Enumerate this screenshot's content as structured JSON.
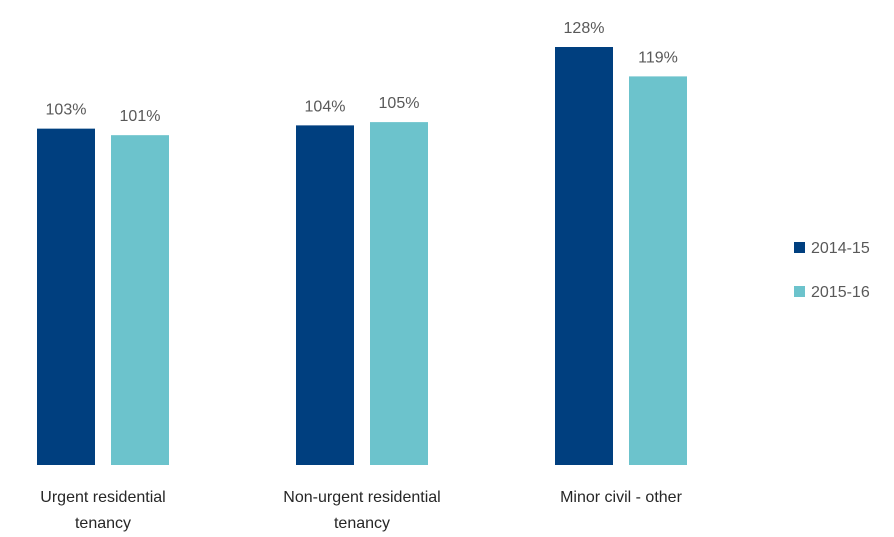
{
  "chart_data": {
    "type": "bar",
    "categories": [
      [
        "Urgent residential",
        "tenancy"
      ],
      [
        "Non-urgent residential",
        "tenancy"
      ],
      [
        "Minor civil - other"
      ]
    ],
    "series": [
      {
        "name": "2014-15",
        "color": "#003f7f",
        "values": [
          103,
          104,
          128
        ]
      },
      {
        "name": "2015-16",
        "color": "#6cc3cc",
        "values": [
          101,
          105,
          119
        ]
      }
    ],
    "data_labels": [
      [
        "103%",
        "104%",
        "128%"
      ],
      [
        "101%",
        "105%",
        "119%"
      ]
    ],
    "ylim": [
      0,
      135
    ],
    "grid": false,
    "legend": "right"
  }
}
